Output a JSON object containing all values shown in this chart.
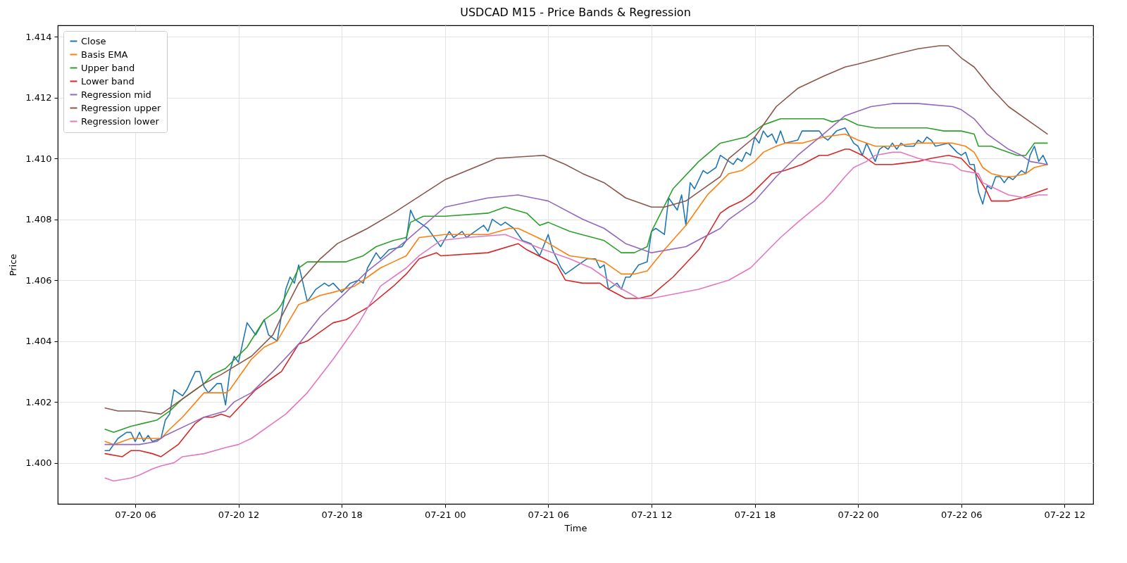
{
  "chart_data": {
    "type": "line",
    "title": "USDCAD M15 - Price Bands & Regression",
    "xlabel": "Time",
    "ylabel": "Price",
    "grid": true,
    "legend": "top left",
    "line_style": "solid",
    "xlim": [
      "--07-20T01:30",
      "--07-22T13:40"
    ],
    "xticks": [
      {
        "value": "--07-20T06:00",
        "label": "07-20 06"
      },
      {
        "value": "--07-20T12:00",
        "label": "07-20 12"
      },
      {
        "value": "--07-20T18:00",
        "label": "07-20 18"
      },
      {
        "value": "--07-21T00:00",
        "label": "07-21 00"
      },
      {
        "value": "--07-21T06:00",
        "label": "07-21 06"
      },
      {
        "value": "--07-21T12:00",
        "label": "07-21 12"
      },
      {
        "value": "--07-21T18:00",
        "label": "07-21 18"
      },
      {
        "value": "--07-22T00:00",
        "label": "07-22 00"
      },
      {
        "value": "--07-22T06:00",
        "label": "07-22 06"
      },
      {
        "value": "--07-22T12:00",
        "label": "07-22 12"
      }
    ],
    "ylim": [
      1.39865,
      1.41437
    ],
    "yticks": [
      {
        "value": 1.4,
        "label": "1.400"
      },
      {
        "value": 1.402,
        "label": "1.402"
      },
      {
        "value": 1.404,
        "label": "1.404"
      },
      {
        "value": 1.406,
        "label": "1.406"
      },
      {
        "value": 1.408,
        "label": "1.408"
      },
      {
        "value": 1.41,
        "label": "1.410"
      },
      {
        "value": 1.412,
        "label": "1.412"
      },
      {
        "value": 1.414,
        "label": "1.414"
      }
    ],
    "series": [
      {
        "name": "Close",
        "color": "#1f77b4",
        "x": [
          "--07-20T04:15",
          "--07-20T04:30",
          "--07-20T05:00",
          "--07-20T05:30",
          "--07-20T05:45",
          "--07-20T06:00",
          "--07-20T06:15",
          "--07-20T06:30",
          "--07-20T06:45",
          "--07-20T07:00",
          "--07-20T07:30",
          "--07-20T07:45",
          "--07-20T08:00",
          "--07-20T08:15",
          "--07-20T08:45",
          "--07-20T09:00",
          "--07-20T09:30",
          "--07-20T09:45",
          "--07-20T10:00",
          "--07-20T10:15",
          "--07-20T10:45",
          "--07-20T11:00",
          "--07-20T11:15",
          "--07-20T11:30",
          "--07-20T11:45",
          "--07-20T12:00",
          "--07-20T12:30",
          "--07-20T13:00",
          "--07-20T13:30",
          "--07-20T13:45",
          "--07-20T14:15",
          "--07-20T14:45",
          "--07-20T15:00",
          "--07-20T15:15",
          "--07-20T15:30",
          "--07-20T16:00",
          "--07-20T16:30",
          "--07-20T17:00",
          "--07-20T17:15",
          "--07-20T17:30",
          "--07-20T18:00",
          "--07-20T18:30",
          "--07-20T19:00",
          "--07-20T19:15",
          "--07-20T19:30",
          "--07-20T20:00",
          "--07-20T20:15",
          "--07-20T20:45",
          "--07-20T21:30",
          "--07-20T21:45",
          "--07-20T22:00",
          "--07-20T22:15",
          "--07-20T23:00",
          "--07-20T23:45",
          "--07-21T00:15",
          "--07-21T00:30",
          "--07-21T01:00",
          "--07-21T01:15",
          "--07-21T01:30",
          "--07-21T02:15",
          "--07-21T02:30",
          "--07-21T02:45",
          "--07-21T03:15",
          "--07-21T03:30",
          "--07-21T04:00",
          "--07-21T04:30",
          "--07-21T05:00",
          "--07-21T05:30",
          "--07-21T06:00",
          "--07-21T06:15",
          "--07-21T06:45",
          "--07-21T07:00",
          "--07-21T07:45",
          "--07-21T08:15",
          "--07-21T08:45",
          "--07-21T09:00",
          "--07-21T09:15",
          "--07-21T09:30",
          "--07-21T10:00",
          "--07-21T10:15",
          "--07-21T10:30",
          "--07-21T10:45",
          "--07-21T11:15",
          "--07-21T11:45",
          "--07-21T12:00",
          "--07-21T12:15",
          "--07-21T12:45",
          "--07-21T13:00",
          "--07-21T13:30",
          "--07-21T13:45",
          "--07-21T14:00",
          "--07-21T14:15",
          "--07-21T14:30",
          "--07-21T15:00",
          "--07-21T15:15",
          "--07-21T15:45",
          "--07-21T16:00",
          "--07-21T16:45",
          "--07-21T17:00",
          "--07-21T17:15",
          "--07-21T17:30",
          "--07-21T17:45",
          "--07-21T18:00",
          "--07-21T18:15",
          "--07-21T18:30",
          "--07-21T18:45",
          "--07-21T19:00",
          "--07-21T19:15",
          "--07-21T19:30",
          "--07-21T19:45",
          "--07-21T20:30",
          "--07-21T20:45",
          "--07-21T21:15",
          "--07-21T21:45",
          "--07-21T22:00",
          "--07-21T22:15",
          "--07-21T22:45",
          "--07-21T23:15",
          "--07-21T23:45",
          "--07-22T00:00",
          "--07-22T00:15",
          "--07-22T00:30",
          "--07-22T01:00",
          "--07-22T01:15",
          "--07-22T01:30",
          "--07-22T01:45",
          "--07-22T02:00",
          "--07-22T02:15",
          "--07-22T02:30",
          "--07-22T02:45",
          "--07-22T03:15",
          "--07-22T03:30",
          "--07-22T03:45",
          "--07-22T04:00",
          "--07-22T04:15",
          "--07-22T04:30",
          "--07-22T05:15",
          "--07-22T05:45",
          "--07-22T06:00",
          "--07-22T06:15",
          "--07-22T06:30",
          "--07-22T06:45",
          "--07-22T07:00",
          "--07-22T07:15",
          "--07-22T07:30",
          "--07-22T07:45",
          "--07-22T08:00",
          "--07-22T08:15",
          "--07-22T08:30",
          "--07-22T08:45",
          "--07-22T09:00",
          "--07-22T09:30",
          "--07-22T09:45",
          "--07-22T10:00",
          "--07-22T10:15",
          "--07-22T10:30",
          "--07-22T10:45",
          "--07-22T11:00"
        ],
        "values": [
          1.4004,
          1.4004,
          1.4008,
          1.401,
          1.401,
          1.4007,
          1.401,
          1.4007,
          1.4009,
          1.4007,
          1.4008,
          1.4014,
          1.4016,
          1.4024,
          1.4022,
          1.4024,
          1.403,
          1.403,
          1.4025,
          1.4023,
          1.4026,
          1.4026,
          1.4019,
          1.403,
          1.4035,
          1.4033,
          1.4046,
          1.4042,
          1.4047,
          1.4042,
          1.404,
          1.4057,
          1.4061,
          1.4059,
          1.4065,
          1.4053,
          1.4057,
          1.4059,
          1.4058,
          1.4059,
          1.4056,
          1.4059,
          1.406,
          1.4059,
          1.4064,
          1.4069,
          1.4067,
          1.407,
          1.4071,
          1.4073,
          1.4083,
          1.408,
          1.4077,
          1.4071,
          1.4076,
          1.4074,
          1.4076,
          1.4074,
          1.4075,
          1.4078,
          1.4076,
          1.408,
          1.4078,
          1.4079,
          1.4077,
          1.4073,
          1.4072,
          1.4068,
          1.4075,
          1.407,
          1.4064,
          1.4062,
          1.4065,
          1.4067,
          1.4067,
          1.4064,
          1.4065,
          1.4057,
          1.4059,
          1.4057,
          1.4061,
          1.4061,
          1.4065,
          1.4066,
          1.4076,
          1.4077,
          1.4075,
          1.4087,
          1.4083,
          1.4088,
          1.4078,
          1.4092,
          1.409,
          1.4096,
          1.4095,
          1.4097,
          1.4101,
          1.4098,
          1.41,
          1.4099,
          1.4102,
          1.4101,
          1.4107,
          1.4105,
          1.4109,
          1.4107,
          1.4108,
          1.4105,
          1.4109,
          1.4105,
          1.4106,
          1.4109,
          1.4109,
          1.4109,
          1.4107,
          1.4106,
          1.4109,
          1.411,
          1.4105,
          1.4104,
          1.4101,
          1.4105,
          1.4099,
          1.4103,
          1.4104,
          1.4103,
          1.4105,
          1.4103,
          1.4105,
          1.4104,
          1.4104,
          1.4106,
          1.4105,
          1.4107,
          1.4106,
          1.4104,
          1.4105,
          1.4102,
          1.4101,
          1.4102,
          1.4098,
          1.4098,
          1.4089,
          1.4085,
          1.4091,
          1.409,
          1.4094,
          1.4094,
          1.4092,
          1.4094,
          1.4093,
          1.4096,
          1.4095,
          1.4101,
          1.4104,
          1.4099,
          1.4101,
          1.4098
        ]
      },
      {
        "name": "Basis EMA",
        "color": "#ff7f0e",
        "x": [
          "--07-20T04:15",
          "--07-20T04:45",
          "--07-20T05:45",
          "--07-20T06:30",
          "--07-20T07:30",
          "--07-20T08:00",
          "--07-20T08:45",
          "--07-20T10:00",
          "--07-20T10:30",
          "--07-20T11:15",
          "--07-20T11:30",
          "--07-20T12:15",
          "--07-20T12:45",
          "--07-20T13:30",
          "--07-20T14:15",
          "--07-20T15:30",
          "--07-20T16:00",
          "--07-20T16:45",
          "--07-20T17:30",
          "--07-20T18:45",
          "--07-20T19:30",
          "--07-20T20:15",
          "--07-20T21:00",
          "--07-20T21:45",
          "--07-20T22:30",
          "--07-21T00:00",
          "--07-21T02:30",
          "--07-21T03:45",
          "--07-21T04:15",
          "--07-21T05:45",
          "--07-21T07:15",
          "--07-21T08:30",
          "--07-21T09:15",
          "--07-21T10:15",
          "--07-21T11:00",
          "--07-21T11:45",
          "--07-21T12:45",
          "--07-21T14:00",
          "--07-21T15:15",
          "--07-21T16:30",
          "--07-21T17:15",
          "--07-21T18:00",
          "--07-21T18:30",
          "--07-21T19:15",
          "--07-21T19:45",
          "--07-21T20:45",
          "--07-21T22:00",
          "--07-21T23:15",
          "--07-22T00:00",
          "--07-22T01:00",
          "--07-22T02:00",
          "--07-22T03:30",
          "--07-22T04:30",
          "--07-22T05:30",
          "--07-22T06:15",
          "--07-22T06:45",
          "--07-22T07:15",
          "--07-22T07:45",
          "--07-22T08:30",
          "--07-22T09:00",
          "--07-22T09:45",
          "--07-22T10:15",
          "--07-22T11:00"
        ],
        "values": [
          1.4007,
          1.4006,
          1.4008,
          1.4008,
          1.4008,
          1.4011,
          1.4015,
          1.4023,
          1.4023,
          1.4023,
          1.4024,
          1.403,
          1.4034,
          1.4038,
          1.404,
          1.4052,
          1.4053,
          1.4055,
          1.4056,
          1.4058,
          1.4061,
          1.4064,
          1.4066,
          1.4068,
          1.4074,
          1.4075,
          1.4075,
          1.4077,
          1.4077,
          1.4073,
          1.4068,
          1.4067,
          1.4066,
          1.4062,
          1.4062,
          1.4063,
          1.407,
          1.4078,
          1.4088,
          1.4095,
          1.4096,
          1.4099,
          1.4102,
          1.4104,
          1.4105,
          1.4105,
          1.4107,
          1.4108,
          1.4106,
          1.4104,
          1.4104,
          1.4105,
          1.4105,
          1.4105,
          1.4104,
          1.4102,
          1.4097,
          1.4095,
          1.4094,
          1.4094,
          1.4095,
          1.4097,
          1.4098
        ]
      },
      {
        "name": "Upper band",
        "color": "#2ca02c",
        "x": [
          "--07-20T04:15",
          "--07-20T04:45",
          "--07-20T05:45",
          "--07-20T06:30",
          "--07-20T07:15",
          "--07-20T08:00",
          "--07-20T08:45",
          "--07-20T10:00",
          "--07-20T10:30",
          "--07-20T11:15",
          "--07-20T12:30",
          "--07-20T13:30",
          "--07-20T14:15",
          "--07-20T14:30",
          "--07-20T15:30",
          "--07-20T16:00",
          "--07-20T16:45",
          "--07-20T18:15",
          "--07-20T19:15",
          "--07-20T20:00",
          "--07-20T21:00",
          "--07-20T21:45",
          "--07-20T22:00",
          "--07-20T22:45",
          "--07-21T00:00",
          "--07-21T02:30",
          "--07-21T03:30",
          "--07-21T04:45",
          "--07-21T05:30",
          "--07-21T06:00",
          "--07-21T07:15",
          "--07-21T09:15",
          "--07-21T10:15",
          "--07-21T11:00",
          "--07-21T11:45",
          "--07-21T12:00",
          "--07-21T13:15",
          "--07-21T14:45",
          "--07-21T16:00",
          "--07-21T17:30",
          "--07-21T17:45",
          "--07-21T18:30",
          "--07-21T19:00",
          "--07-21T19:30",
          "--07-21T20:30",
          "--07-21T22:00",
          "--07-21T22:30",
          "--07-21T23:15",
          "--07-22T00:00",
          "--07-22T01:00",
          "--07-22T02:00",
          "--07-22T03:30",
          "--07-22T04:00",
          "--07-22T05:00",
          "--07-22T06:00",
          "--07-22T06:45",
          "--07-22T07:00",
          "--07-22T07:45",
          "--07-22T08:45",
          "--07-22T09:15",
          "--07-22T09:45",
          "--07-22T10:15",
          "--07-22T10:45",
          "--07-22T11:00"
        ],
        "values": [
          1.4011,
          1.401,
          1.4012,
          1.4013,
          1.4014,
          1.4017,
          1.4021,
          1.4026,
          1.4029,
          1.4031,
          1.4038,
          1.4047,
          1.405,
          1.4052,
          1.4064,
          1.4066,
          1.4066,
          1.4066,
          1.4068,
          1.4071,
          1.4073,
          1.4074,
          1.4079,
          1.4081,
          1.4081,
          1.4082,
          1.4084,
          1.4082,
          1.4078,
          1.4079,
          1.4076,
          1.4073,
          1.4069,
          1.4069,
          1.4071,
          1.4076,
          1.409,
          1.4099,
          1.4105,
          1.4107,
          1.4108,
          1.4111,
          1.4112,
          1.4113,
          1.4113,
          1.4113,
          1.4112,
          1.4113,
          1.4111,
          1.411,
          1.411,
          1.411,
          1.411,
          1.4109,
          1.4109,
          1.4108,
          1.4104,
          1.4104,
          1.4102,
          1.4101,
          1.4101,
          1.4105,
          1.4105,
          1.4105
        ]
      },
      {
        "name": "Lower band",
        "color": "#d62728",
        "x": [
          "--07-20T04:15",
          "--07-20T05:15",
          "--07-20T05:45",
          "--07-20T06:15",
          "--07-20T07:00",
          "--07-20T07:30",
          "--07-20T08:30",
          "--07-20T09:30",
          "--07-20T10:00",
          "--07-20T10:30",
          "--07-20T11:00",
          "--07-20T11:30",
          "--07-20T12:00",
          "--07-20T13:00",
          "--07-20T14:00",
          "--07-20T14:30",
          "--07-20T15:30",
          "--07-20T16:00",
          "--07-20T16:45",
          "--07-20T17:30",
          "--07-20T18:15",
          "--07-20T19:30",
          "--07-20T21:00",
          "--07-20T21:45",
          "--07-20T22:30",
          "--07-20T23:30",
          "--07-20T23:45",
          "--07-21T02:30",
          "--07-21T04:15",
          "--07-21T04:45",
          "--07-21T06:30",
          "--07-21T07:00",
          "--07-21T08:00",
          "--07-21T09:00",
          "--07-21T09:30",
          "--07-21T10:30",
          "--07-21T11:15",
          "--07-21T12:00",
          "--07-21T13:15",
          "--07-21T14:45",
          "--07-21T16:00",
          "--07-21T16:30",
          "--07-21T17:15",
          "--07-21T17:45",
          "--07-21T19:00",
          "--07-21T19:45",
          "--07-21T20:45",
          "--07-21T21:45",
          "--07-21T22:15",
          "--07-21T23:15",
          "--07-21T23:30",
          "--07-22T00:15",
          "--07-22T00:45",
          "--07-22T01:00",
          "--07-22T02:00",
          "--07-22T03:30",
          "--07-22T04:15",
          "--07-22T05:15",
          "--07-22T06:00",
          "--07-22T06:30",
          "--07-22T06:45",
          "--07-22T07:30",
          "--07-22T07:45",
          "--07-22T08:45",
          "--07-22T09:30",
          "--07-22T10:00",
          "--07-22T10:30",
          "--07-22T11:00"
        ],
        "values": [
          1.4003,
          1.4002,
          1.4004,
          1.4004,
          1.4003,
          1.4002,
          1.4006,
          1.4013,
          1.4015,
          1.4015,
          1.4016,
          1.4015,
          1.4018,
          1.4024,
          1.4028,
          1.403,
          1.4039,
          1.404,
          1.4043,
          1.4046,
          1.4047,
          1.4051,
          1.4058,
          1.4062,
          1.4067,
          1.4069,
          1.4068,
          1.4069,
          1.4072,
          1.407,
          1.4065,
          1.406,
          1.4059,
          1.4059,
          1.4057,
          1.4054,
          1.4054,
          1.4055,
          1.4061,
          1.407,
          1.4082,
          1.4084,
          1.4086,
          1.4088,
          1.4095,
          1.4096,
          1.4098,
          1.4101,
          1.4101,
          1.4103,
          1.4103,
          1.4101,
          1.4099,
          1.4098,
          1.4098,
          1.4099,
          1.41,
          1.4101,
          1.41,
          1.4097,
          1.4096,
          1.4089,
          1.4086,
          1.4086,
          1.4087,
          1.4088,
          1.4089,
          1.409
        ]
      },
      {
        "name": "Regression mid",
        "color": "#9467bd",
        "x": [
          "--07-20T04:15",
          "--07-20T05:00",
          "--07-20T06:15",
          "--07-20T07:15",
          "--07-20T07:45",
          "--07-20T09:15",
          "--07-20T10:00",
          "--07-20T11:15",
          "--07-20T11:45",
          "--07-20T12:45",
          "--07-20T14:00",
          "--07-20T15:30",
          "--07-20T16:45",
          "--07-20T18:15",
          "--07-20T19:30",
          "--07-20T21:45",
          "--07-21T00:00",
          "--07-21T02:30",
          "--07-21T04:15",
          "--07-21T06:00",
          "--07-21T08:00",
          "--07-21T09:15",
          "--07-21T10:30",
          "--07-21T12:00",
          "--07-21T14:00",
          "--07-21T16:00",
          "--07-21T16:30",
          "--07-21T18:00",
          "--07-21T19:15",
          "--07-21T20:30",
          "--07-21T22:00",
          "--07-21T23:15",
          "--07-22T00:45",
          "--07-22T02:00",
          "--07-22T03:30",
          "--07-22T05:30",
          "--07-22T06:00",
          "--07-22T06:45",
          "--07-22T07:30",
          "--07-22T08:00",
          "--07-22T08:45",
          "--07-22T09:30",
          "--07-22T10:00",
          "--07-22T11:00"
        ],
        "values": [
          1.4006,
          1.4006,
          1.4006,
          1.4007,
          1.4009,
          1.4013,
          1.4015,
          1.4017,
          1.402,
          1.4023,
          1.403,
          1.4039,
          1.4048,
          1.4056,
          1.4063,
          1.4073,
          1.4084,
          1.4087,
          1.4088,
          1.4086,
          1.408,
          1.4077,
          1.4072,
          1.4069,
          1.4071,
          1.4077,
          1.408,
          1.4086,
          1.4094,
          1.4101,
          1.4108,
          1.4114,
          1.4117,
          1.4118,
          1.4118,
          1.4117,
          1.4116,
          1.4113,
          1.4108,
          1.4106,
          1.4103,
          1.4101,
          1.4099,
          1.4098
        ]
      },
      {
        "name": "Regression upper",
        "color": "#8c564b",
        "x": [
          "--07-20T04:15",
          "--07-20T05:00",
          "--07-20T06:15",
          "--07-20T07:30",
          "--07-20T08:30",
          "--07-20T10:00",
          "--07-20T11:00",
          "--07-20T12:45",
          "--07-20T14:00",
          "--07-20T14:30",
          "--07-20T15:30",
          "--07-20T16:45",
          "--07-20T17:45",
          "--07-20T19:30",
          "--07-20T21:00",
          "--07-21T00:00",
          "--07-21T03:00",
          "--07-21T05:45",
          "--07-21T07:00",
          "--07-21T08:00",
          "--07-21T09:15",
          "--07-21T10:30",
          "--07-21T12:00",
          "--07-21T12:45",
          "--07-21T14:00",
          "--07-21T16:00",
          "--07-21T16:30",
          "--07-21T18:00",
          "--07-21T19:15",
          "--07-21T20:30",
          "--07-21T22:00",
          "--07-21T23:15",
          "--07-22T00:00",
          "--07-22T02:00",
          "--07-22T03:30",
          "--07-22T04:45",
          "--07-22T05:15",
          "--07-22T06:00",
          "--07-22T06:45",
          "--07-22T07:45",
          "--07-22T08:45",
          "--07-22T10:00",
          "--07-22T11:00"
        ],
        "values": [
          1.4018,
          1.4017,
          1.4017,
          1.4016,
          1.402,
          1.4026,
          1.4029,
          1.4035,
          1.4042,
          1.4048,
          1.4059,
          1.4067,
          1.4072,
          1.4077,
          1.4082,
          1.4093,
          1.41,
          1.4101,
          1.4098,
          1.4095,
          1.4092,
          1.4087,
          1.4084,
          1.4084,
          1.4086,
          1.4094,
          1.41,
          1.4107,
          1.4117,
          1.4123,
          1.4127,
          1.413,
          1.4131,
          1.4134,
          1.4136,
          1.4137,
          1.4137,
          1.4133,
          1.413,
          1.4123,
          1.4117,
          1.4112,
          1.4108
        ]
      },
      {
        "name": "Regression lower",
        "color": "#e377c2",
        "x": [
          "--07-20T04:15",
          "--07-20T04:45",
          "--07-20T05:45",
          "--07-20T06:15",
          "--07-20T07:00",
          "--07-20T07:30",
          "--07-20T08:15",
          "--07-20T08:45",
          "--07-20T10:00",
          "--07-20T11:15",
          "--07-20T12:00",
          "--07-20T12:45",
          "--07-20T14:00",
          "--07-20T14:45",
          "--07-20T16:00",
          "--07-20T17:30",
          "--07-20T19:00",
          "--07-20T20:15",
          "--07-20T21:45",
          "--07-20T22:30",
          "--07-20T23:45",
          "--07-21T01:15",
          "--07-21T03:30",
          "--07-21T05:45",
          "--07-21T07:15",
          "--07-21T08:30",
          "--07-21T10:00",
          "--07-21T11:15",
          "--07-21T12:00",
          "--07-21T14:45",
          "--07-21T16:30",
          "--07-21T17:45",
          "--07-21T19:30",
          "--07-21T20:30",
          "--07-21T22:00",
          "--07-21T22:30",
          "--07-21T23:15",
          "--07-21T23:45",
          "--07-22T00:30",
          "--07-22T01:00",
          "--07-22T02:00",
          "--07-22T02:30",
          "--07-22T03:30",
          "--07-22T04:15",
          "--07-22T05:30",
          "--07-22T06:00",
          "--07-22T07:00",
          "--07-22T07:15",
          "--07-22T08:00",
          "--07-22T08:45",
          "--07-22T09:45",
          "--07-22T10:30",
          "--07-22T11:00"
        ],
        "values": [
          1.3995,
          1.3994,
          1.3995,
          1.3996,
          1.3998,
          1.3999,
          1.4,
          1.4002,
          1.4003,
          1.4005,
          1.4006,
          1.4008,
          1.4013,
          1.4016,
          1.4023,
          1.4034,
          1.4046,
          1.4058,
          1.4064,
          1.4068,
          1.4073,
          1.4074,
          1.4075,
          1.407,
          1.4067,
          1.4064,
          1.4058,
          1.4054,
          1.4054,
          1.4057,
          1.406,
          1.4064,
          1.4074,
          1.4079,
          1.4086,
          1.4089,
          1.4094,
          1.4097,
          1.4099,
          1.4101,
          1.4102,
          1.4102,
          1.41,
          1.4099,
          1.4098,
          1.4096,
          1.4095,
          1.4092,
          1.409,
          1.4088,
          1.4087,
          1.4088,
          1.4088
        ]
      }
    ]
  }
}
